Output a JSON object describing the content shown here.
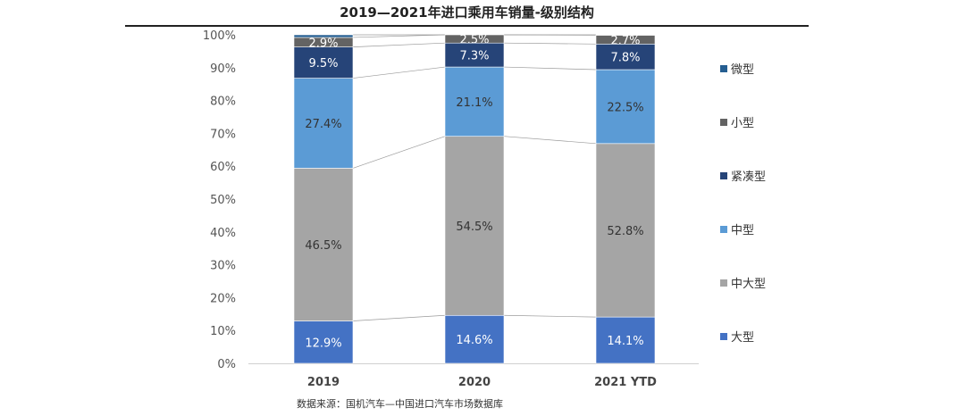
{
  "title": "2019—2021年进口乘用车销量-级别结构",
  "source": "数据来源：国机汽车—中国进口汽车市场数据库",
  "chart_data": {
    "type": "bar",
    "stacked": true,
    "percent": true,
    "categories": [
      "2019",
      "2020",
      "2021 YTD"
    ],
    "ylim": [
      0,
      100
    ],
    "yticks": [
      "0%",
      "10%",
      "20%",
      "30%",
      "40%",
      "50%",
      "60%",
      "70%",
      "80%",
      "90%",
      "100%"
    ],
    "series": [
      {
        "name": "大型",
        "color": "#4472c4",
        "values": [
          12.9,
          14.6,
          14.1
        ],
        "labels": [
          "12.9%",
          "14.6%",
          "14.1%"
        ]
      },
      {
        "name": "中大型",
        "color": "#a5a5a5",
        "values": [
          46.5,
          54.5,
          52.8
        ],
        "labels": [
          "46.5%",
          "54.5%",
          "52.8%"
        ]
      },
      {
        "name": "中型",
        "color": "#5b9bd5",
        "values": [
          27.4,
          21.1,
          22.5
        ],
        "labels": [
          "27.4%",
          "21.1%",
          "22.5%"
        ]
      },
      {
        "name": "紧凑型",
        "color": "#264478",
        "values": [
          9.5,
          7.3,
          7.8
        ],
        "labels": [
          "9.5%",
          "7.3%",
          "7.8%"
        ]
      },
      {
        "name": "小型",
        "color": "#636363",
        "values": [
          2.9,
          2.5,
          2.7
        ],
        "labels": [
          "2.9%",
          "2.5%",
          "2.7%"
        ]
      },
      {
        "name": "微型",
        "color": "#255e91",
        "values": [
          0.8,
          0.0,
          0.1
        ],
        "labels": [
          "",
          "",
          ""
        ]
      }
    ],
    "legend": "right",
    "legend_order": [
      "微型",
      "小型",
      "紧凑型",
      "中型",
      "中大型",
      "大型"
    ],
    "grid": false,
    "connector_lines": true
  }
}
